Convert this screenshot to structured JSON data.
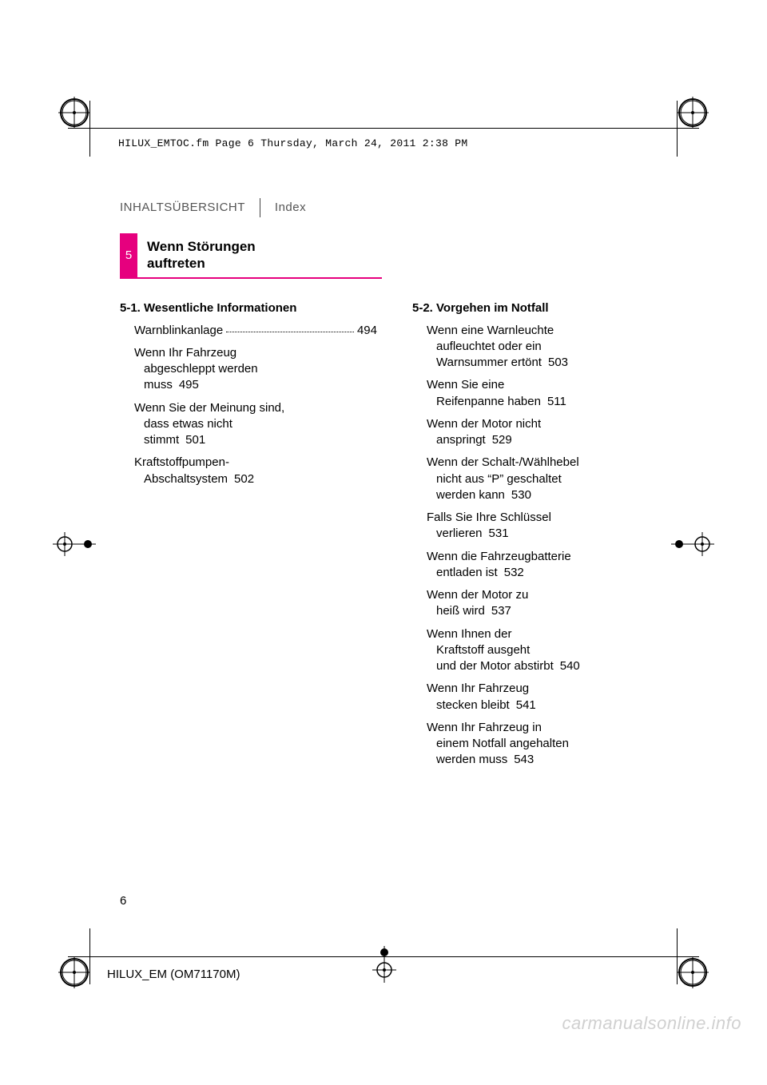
{
  "proof": {
    "file_stamp": "HILUX_EMTOC.fm  Page 6  Thursday, March 24, 2011  2:38 PM"
  },
  "header": {
    "tab_left": "INHALTSÜBERSICHT",
    "tab_right": "Index"
  },
  "accent_color": "#e6007e",
  "chapter": {
    "number": "5",
    "title_line1": "Wenn Störungen",
    "title_line2": "auftreten"
  },
  "sections": {
    "s1": {
      "heading": "5-1. Wesentliche Informationen",
      "items": [
        {
          "lines": [
            "Warnblinkanlage"
          ],
          "page": "494"
        },
        {
          "lines": [
            "Wenn Ihr Fahrzeug",
            "abgeschleppt werden",
            "muss"
          ],
          "page": "495"
        },
        {
          "lines": [
            "Wenn Sie der Meinung sind,",
            "dass etwas nicht",
            "stimmt"
          ],
          "page": "501"
        },
        {
          "lines": [
            "Kraftstoffpumpen-",
            "Abschaltsystem"
          ],
          "page": "502"
        }
      ]
    },
    "s2": {
      "heading": "5-2. Vorgehen im Notfall",
      "items": [
        {
          "lines": [
            "Wenn eine Warnleuchte",
            "aufleuchtet oder ein",
            "Warnsummer ertönt"
          ],
          "page": "503"
        },
        {
          "lines": [
            "Wenn Sie eine",
            "Reifenpanne haben"
          ],
          "page": "511"
        },
        {
          "lines": [
            "Wenn der Motor nicht",
            "anspringt"
          ],
          "page": "529"
        },
        {
          "lines": [
            "Wenn der Schalt-/Wählhebel",
            "nicht aus “P” geschaltet",
            "werden kann"
          ],
          "page": "530"
        },
        {
          "lines": [
            "Falls Sie Ihre Schlüssel",
            "verlieren"
          ],
          "page": "531"
        },
        {
          "lines": [
            "Wenn die Fahrzeugbatterie",
            "entladen ist"
          ],
          "page": "532"
        },
        {
          "lines": [
            "Wenn der Motor zu",
            "heiß wird"
          ],
          "page": "537"
        },
        {
          "lines": [
            "Wenn Ihnen der",
            "Kraftstoff ausgeht",
            "und der Motor abstirbt"
          ],
          "page": "540"
        },
        {
          "lines": [
            "Wenn Ihr Fahrzeug",
            "stecken bleibt"
          ],
          "page": "541"
        },
        {
          "lines": [
            "Wenn Ihr Fahrzeug in",
            "einem Notfall angehalten",
            "werden muss"
          ],
          "page": "543"
        }
      ]
    }
  },
  "footer": {
    "page_number": "6",
    "doc_id": "HILUX_EM (OM71170M)"
  },
  "watermark": "carmanualsonline.info"
}
